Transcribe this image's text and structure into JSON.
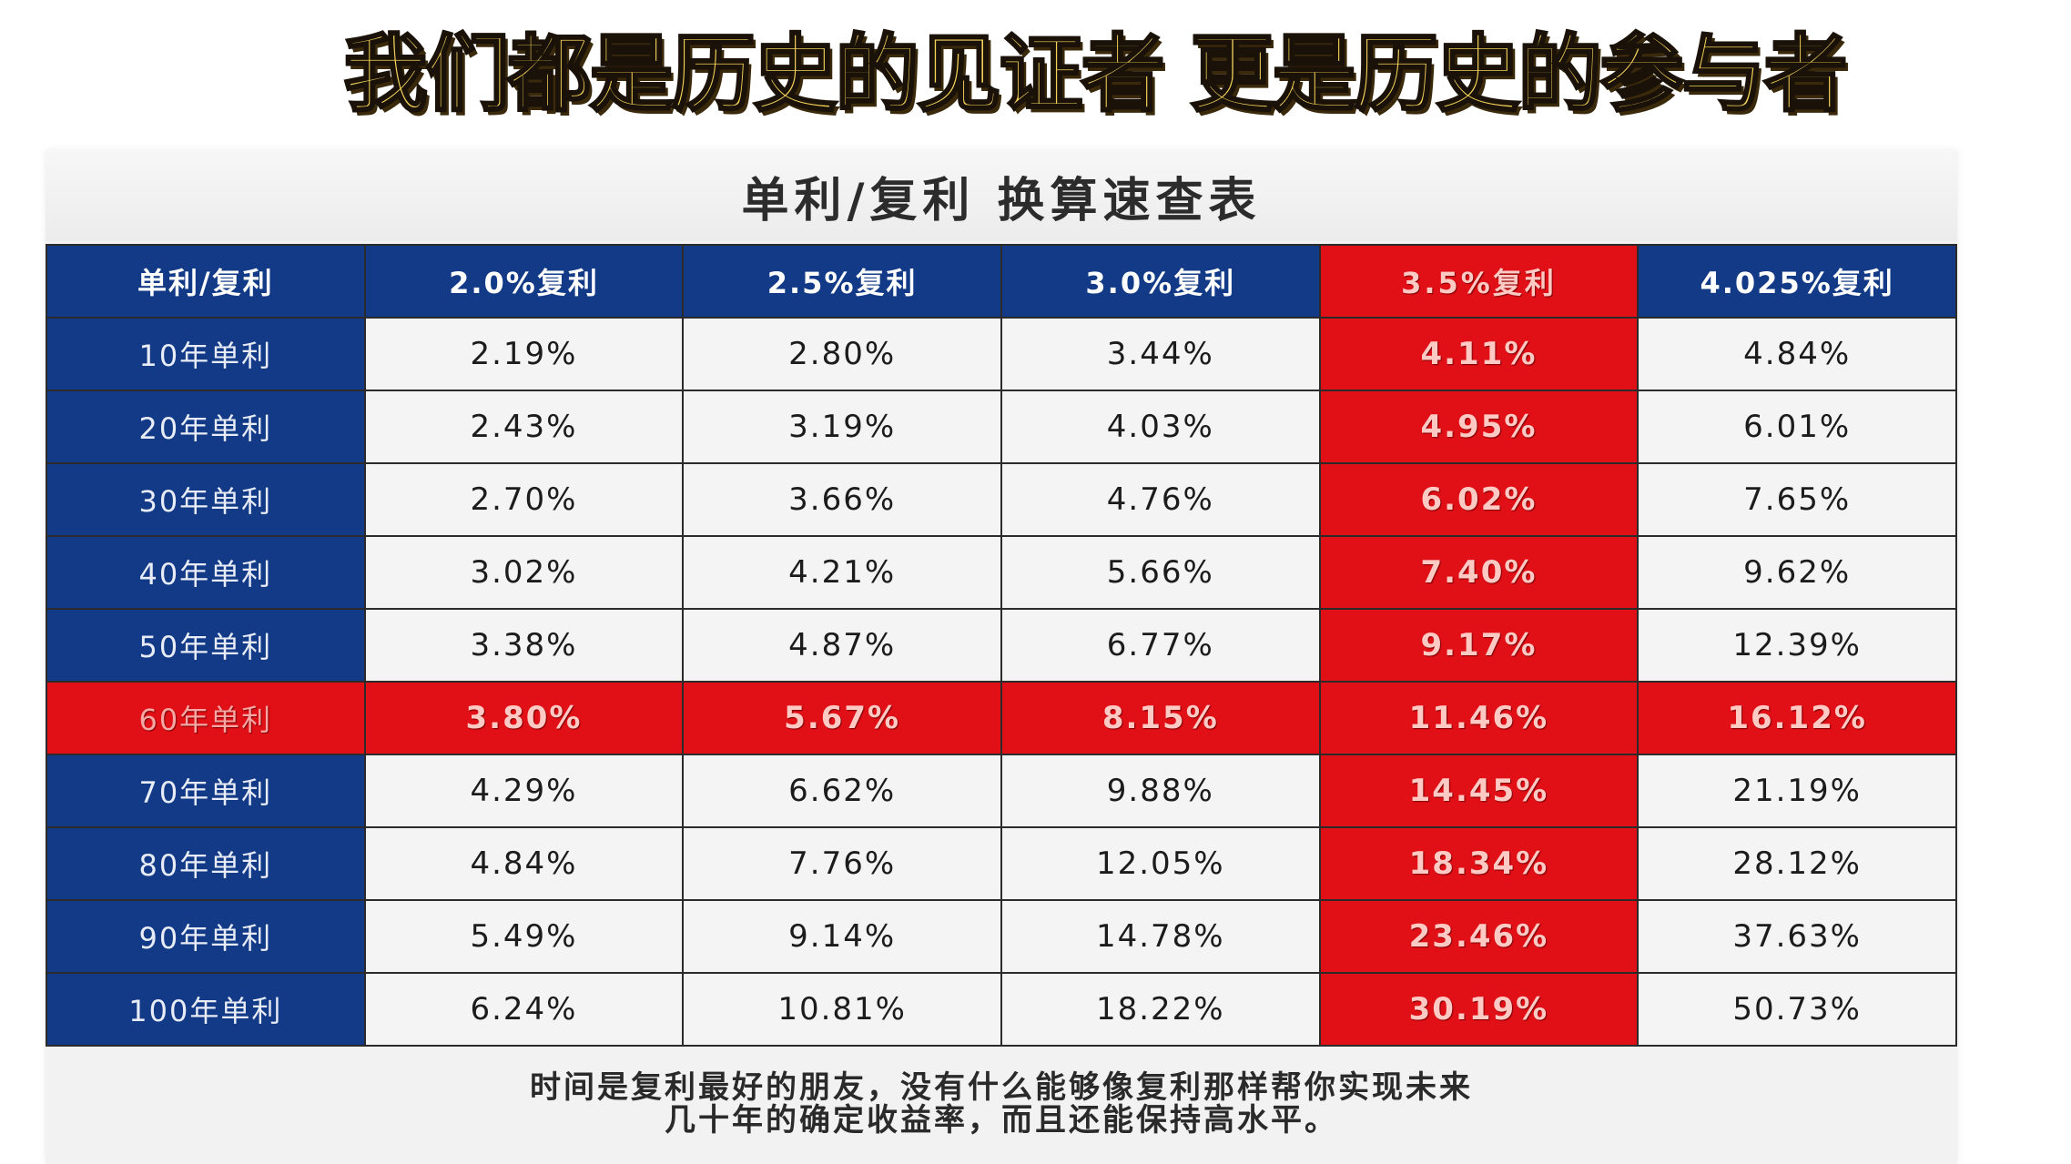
{
  "banner": {
    "text": "我们都是历史的见证者 更是历史的参与者"
  },
  "table": {
    "title": "单利/复利 换算速查表",
    "corner": "单利/复利",
    "columns": [
      "2.0%复利",
      "2.5%复利",
      "3.0%复利",
      "3.5%复利",
      "4.025%复利"
    ],
    "highlight_column_index": 3,
    "highlight_row_index": 5,
    "rows": [
      {
        "label": "10年单利",
        "values": [
          "2.19%",
          "2.80%",
          "3.44%",
          "4.11%",
          "4.84%"
        ]
      },
      {
        "label": "20年单利",
        "values": [
          "2.43%",
          "3.19%",
          "4.03%",
          "4.95%",
          "6.01%"
        ]
      },
      {
        "label": "30年单利",
        "values": [
          "2.70%",
          "3.66%",
          "4.76%",
          "6.02%",
          "7.65%"
        ]
      },
      {
        "label": "40年单利",
        "values": [
          "3.02%",
          "4.21%",
          "5.66%",
          "7.40%",
          "9.62%"
        ]
      },
      {
        "label": "50年单利",
        "values": [
          "3.38%",
          "4.87%",
          "6.77%",
          "9.17%",
          "12.39%"
        ]
      },
      {
        "label": "60年单利",
        "values": [
          "3.80%",
          "5.67%",
          "8.15%",
          "11.46%",
          "16.12%"
        ]
      },
      {
        "label": "70年单利",
        "values": [
          "4.29%",
          "6.62%",
          "9.88%",
          "14.45%",
          "21.19%"
        ]
      },
      {
        "label": "80年单利",
        "values": [
          "4.84%",
          "7.76%",
          "12.05%",
          "18.34%",
          "28.12%"
        ]
      },
      {
        "label": "90年单利",
        "values": [
          "5.49%",
          "9.14%",
          "14.78%",
          "23.46%",
          "37.63%"
        ]
      },
      {
        "label": "100年单利",
        "values": [
          "6.24%",
          "10.81%",
          "18.22%",
          "30.19%",
          "50.73%"
        ]
      }
    ]
  },
  "footer": {
    "line1": "时间是复利最好的朋友，没有什么能够像复利那样帮你实现未来",
    "line2": "几十年的确定收益率，而且还能保持高水平。"
  },
  "colors": {
    "header_blue": "#123a86",
    "highlight_red": "#e10f16",
    "banner_gold": "#f3d35a"
  }
}
